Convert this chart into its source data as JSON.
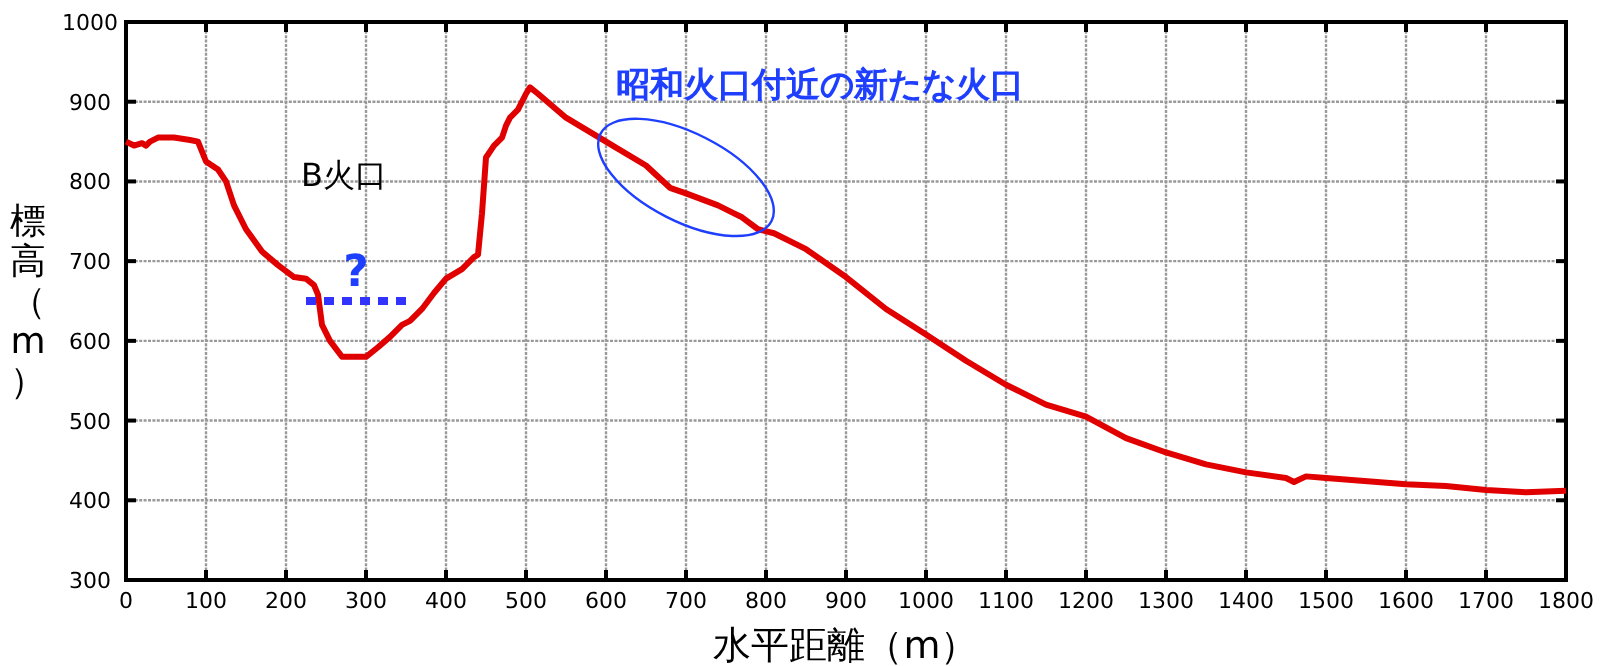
{
  "chart_data": {
    "type": "line",
    "xlabel": "水平距離（m）",
    "ylabel": "標高（m）",
    "xlim": [
      0,
      1800
    ],
    "ylim": [
      300,
      1000
    ],
    "xticks": [
      0,
      100,
      200,
      300,
      400,
      500,
      600,
      700,
      800,
      900,
      1000,
      1100,
      1200,
      1300,
      1400,
      1500,
      1600,
      1700,
      1800
    ],
    "yticks": [
      300,
      400,
      500,
      600,
      700,
      800,
      900,
      1000
    ],
    "grid": true,
    "marker": "none",
    "series": [
      {
        "color": "#e00000",
        "line_style": "solid",
        "x": [
          0,
          10,
          20,
          25,
          30,
          40,
          60,
          80,
          90,
          100,
          115,
          125,
          135,
          150,
          170,
          190,
          210,
          225,
          235,
          240,
          245,
          255,
          270,
          290,
          300,
          315,
          330,
          345,
          355,
          370,
          385,
          400,
          420,
          435,
          440,
          445,
          450,
          460,
          470,
          475,
          480,
          490,
          500,
          505,
          515,
          550,
          600,
          650,
          680,
          700,
          740,
          760,
          770,
          790,
          810,
          850,
          900,
          950,
          1000,
          1050,
          1100,
          1150,
          1200,
          1250,
          1300,
          1350,
          1400,
          1450,
          1460,
          1475,
          1500,
          1600,
          1650,
          1700,
          1750,
          1800
        ],
        "values": [
          850,
          845,
          848,
          845,
          850,
          855,
          855,
          852,
          850,
          825,
          815,
          800,
          770,
          740,
          712,
          695,
          680,
          678,
          670,
          658,
          620,
          600,
          580,
          580,
          580,
          592,
          605,
          620,
          625,
          640,
          660,
          678,
          690,
          705,
          708,
          760,
          830,
          845,
          855,
          870,
          880,
          890,
          910,
          918,
          910,
          880,
          850,
          820,
          792,
          785,
          770,
          760,
          755,
          740,
          735,
          715,
          680,
          640,
          608,
          575,
          545,
          520,
          505,
          478,
          460,
          445,
          435,
          428,
          423,
          430,
          428,
          420,
          418,
          413,
          410,
          412
        ]
      },
      {
        "color": "#3333ff",
        "line_style": "dotted",
        "x": [
          225,
          360
        ],
        "values": [
          650,
          650
        ]
      }
    ],
    "annotations": [
      "B火口",
      "?",
      "昭和火口付近の新たな火口"
    ]
  }
}
